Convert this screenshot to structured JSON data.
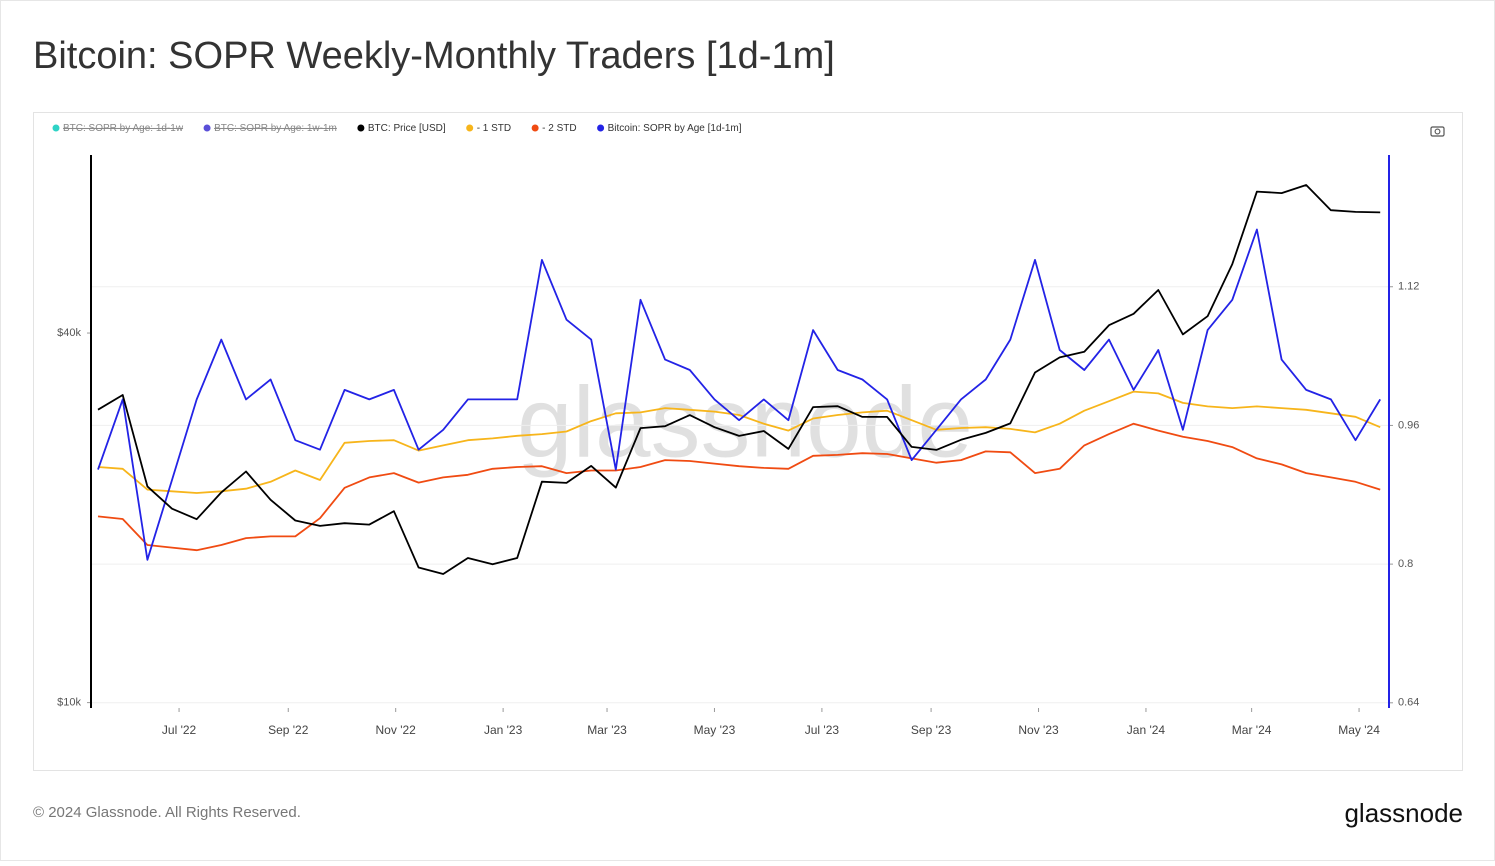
{
  "chart_data": {
    "type": "line",
    "title": "Bitcoin: SOPR Weekly-Monthly Traders [1d-1m]",
    "watermark": "glassnode",
    "footer": "© 2024 Glassnode. All Rights Reserved.",
    "brand": "glassnode",
    "hidden_series": [
      {
        "name": "BTC: SOPR by Age: 1d-1w",
        "color": "#2ed3c6"
      },
      {
        "name": "BTC: SOPR by Age: 1w-1m",
        "color": "#5a4fd8"
      }
    ],
    "x": [
      "2022-05-16",
      "2022-05-30",
      "2022-06-13",
      "2022-06-27",
      "2022-07-11",
      "2022-07-25",
      "2022-08-08",
      "2022-08-22",
      "2022-09-05",
      "2022-09-19",
      "2022-10-03",
      "2022-10-17",
      "2022-10-31",
      "2022-11-14",
      "2022-11-28",
      "2022-12-12",
      "2022-12-26",
      "2023-01-09",
      "2023-01-23",
      "2023-02-06",
      "2023-02-20",
      "2023-03-06",
      "2023-03-20",
      "2023-04-03",
      "2023-04-17",
      "2023-05-01",
      "2023-05-15",
      "2023-05-29",
      "2023-06-12",
      "2023-06-26",
      "2023-07-10",
      "2023-07-24",
      "2023-08-07",
      "2023-08-21",
      "2023-09-04",
      "2023-09-18",
      "2023-10-02",
      "2023-10-16",
      "2023-10-30",
      "2023-11-13",
      "2023-11-27",
      "2023-12-11",
      "2023-12-25",
      "2024-01-08",
      "2024-01-22",
      "2024-02-05",
      "2024-02-19",
      "2024-03-04",
      "2024-03-18",
      "2024-04-01",
      "2024-04-15",
      "2024-04-29",
      "2024-05-13"
    ],
    "series": [
      {
        "name": "BTC: Price [USD]",
        "color": "#000000",
        "axis": "y",
        "values": [
          30000,
          31700,
          22500,
          20700,
          19900,
          22000,
          23800,
          21400,
          19800,
          19400,
          19600,
          19500,
          20500,
          16600,
          16200,
          17200,
          16800,
          17200,
          22900,
          22800,
          24300,
          22400,
          28000,
          28200,
          29400,
          28100,
          27200,
          27700,
          25900,
          30300,
          30400,
          29200,
          29200,
          26100,
          25800,
          26800,
          27500,
          28500,
          34500,
          36500,
          37300,
          41200,
          43000,
          47000,
          39800,
          42600,
          51800,
          68000,
          67600,
          69700,
          63400,
          63000,
          62900
        ]
      },
      {
        "name": "- 1 STD",
        "color": "#f7b51b",
        "axis": "y2",
        "values": [
          0.912,
          0.91,
          0.886,
          0.884,
          0.882,
          0.884,
          0.887,
          0.895,
          0.908,
          0.897,
          0.94,
          0.942,
          0.943,
          0.931,
          0.937,
          0.943,
          0.945,
          0.948,
          0.95,
          0.953,
          0.965,
          0.974,
          0.975,
          0.98,
          0.978,
          0.976,
          0.972,
          0.962,
          0.954,
          0.968,
          0.972,
          0.975,
          0.977,
          0.966,
          0.955,
          0.957,
          0.958,
          0.956,
          0.952,
          0.962,
          0.977,
          0.988,
          0.999,
          0.997,
          0.986,
          0.982,
          0.98,
          0.982,
          0.98,
          0.978,
          0.974,
          0.97,
          0.958
        ]
      },
      {
        "name": "- 2 STD",
        "color": "#f04b12",
        "axis": "y2",
        "values": [
          0.855,
          0.852,
          0.822,
          0.819,
          0.816,
          0.822,
          0.83,
          0.832,
          0.832,
          0.853,
          0.888,
          0.9,
          0.905,
          0.894,
          0.9,
          0.903,
          0.91,
          0.912,
          0.913,
          0.905,
          0.908,
          0.908,
          0.912,
          0.92,
          0.919,
          0.916,
          0.913,
          0.911,
          0.91,
          0.925,
          0.926,
          0.928,
          0.927,
          0.922,
          0.917,
          0.92,
          0.93,
          0.929,
          0.905,
          0.91,
          0.937,
          0.95,
          0.962,
          0.954,
          0.947,
          0.942,
          0.935,
          0.922,
          0.915,
          0.905,
          0.9,
          0.895,
          0.886
        ]
      },
      {
        "name": "Bitcoin: SOPR by Age [1d-1m]",
        "color": "#2323e6",
        "axis": "y2",
        "values": [
          0.909,
          0.99,
          0.805,
          0.897,
          0.99,
          1.059,
          0.99,
          1.013,
          0.943,
          0.932,
          1.001,
          0.99,
          1.001,
          0.932,
          0.955,
          0.99,
          0.99,
          0.99,
          1.151,
          1.082,
          1.059,
          0.909,
          1.105,
          1.036,
          1.024,
          0.99,
          0.966,
          0.99,
          0.966,
          1.07,
          1.024,
          1.013,
          0.99,
          0.92,
          0.955,
          0.99,
          1.013,
          1.059,
          1.151,
          1.047,
          1.024,
          1.059,
          1.001,
          1.047,
          0.955,
          1.07,
          1.105,
          1.186,
          1.036,
          1.001,
          0.99,
          0.943,
          0.99
        ]
      }
    ],
    "xlim": [
      "2022-05-12",
      "2024-05-18"
    ],
    "xticks": [
      {
        "value": "2022-07-01",
        "label": "Jul '22"
      },
      {
        "value": "2022-09-01",
        "label": "Sep '22"
      },
      {
        "value": "2022-11-01",
        "label": "Nov '22"
      },
      {
        "value": "2023-01-01",
        "label": "Jan '23"
      },
      {
        "value": "2023-03-01",
        "label": "Mar '23"
      },
      {
        "value": "2023-05-01",
        "label": "May '23"
      },
      {
        "value": "2023-07-01",
        "label": "Jul '23"
      },
      {
        "value": "2023-09-01",
        "label": "Sep '23"
      },
      {
        "value": "2023-11-01",
        "label": "Nov '23"
      },
      {
        "value": "2024-01-01",
        "label": "Jan '24"
      },
      {
        "value": "2024-03-01",
        "label": "Mar '24"
      },
      {
        "value": "2024-05-01",
        "label": "May '24"
      }
    ],
    "ylim": [
      9800,
      78000
    ],
    "yscale": "log",
    "yticks": [
      {
        "value": 10000,
        "label": "$10k"
      },
      {
        "value": 40000,
        "label": "$40k"
      }
    ],
    "y2lim": [
      0.634,
      1.272
    ],
    "y2ticks": [
      0.64,
      0.8,
      0.96,
      1.12
    ],
    "grid": true,
    "legend": "top-left"
  }
}
